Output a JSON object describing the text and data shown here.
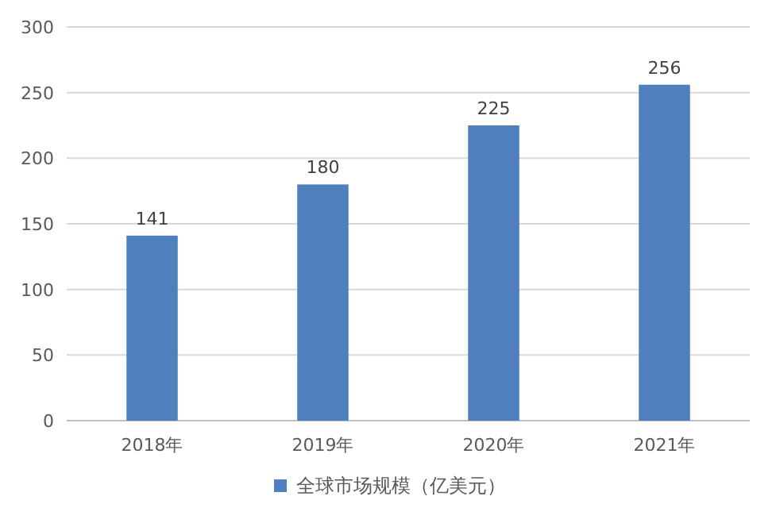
{
  "chart_data": {
    "type": "bar",
    "categories": [
      "2018年",
      "2019年",
      "2020年",
      "2021年"
    ],
    "series": [
      {
        "name": "全球市场规模（亿美元）",
        "color": "#4f7fbd",
        "values": [
          141,
          180,
          225,
          256
        ]
      }
    ],
    "ylim": [
      0,
      300
    ],
    "yticks": [
      0,
      50,
      100,
      150,
      200,
      250,
      300
    ],
    "grid": "y",
    "legend": "bottom",
    "data_labels": true
  }
}
